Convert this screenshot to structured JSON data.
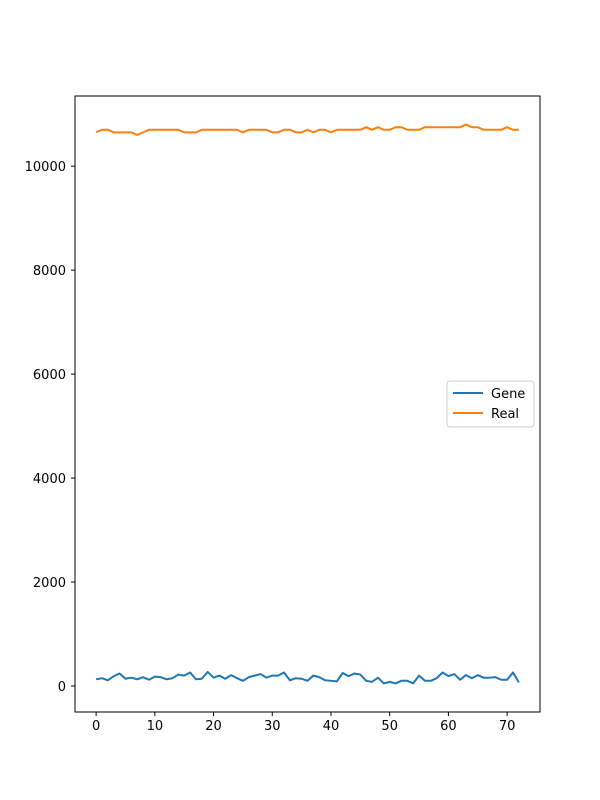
{
  "chart_data": {
    "type": "line",
    "title": "",
    "xlabel": "",
    "ylabel": "",
    "xlim": [
      -3.6,
      75.6
    ],
    "ylim": [
      -500,
      11350
    ],
    "xticks": [
      0,
      10,
      20,
      30,
      40,
      50,
      60,
      70
    ],
    "yticks": [
      0,
      2000,
      4000,
      6000,
      8000,
      10000
    ],
    "xtick_labels": [
      "0",
      "10",
      "20",
      "30",
      "40",
      "50",
      "60",
      "70"
    ],
    "ytick_labels": [
      "0",
      "2000",
      "4000",
      "6000",
      "8000",
      "10000"
    ],
    "grid": false,
    "legend_position": "center-right",
    "series": [
      {
        "name": "Gene",
        "color": "#1f77b4",
        "values": [
          130,
          150,
          110,
          190,
          240,
          140,
          160,
          130,
          170,
          120,
          180,
          170,
          130,
          150,
          220,
          200,
          260,
          130,
          140,
          270,
          160,
          200,
          140,
          210,
          150,
          100,
          170,
          200,
          230,
          160,
          200,
          200,
          260,
          110,
          150,
          140,
          100,
          200,
          170,
          110,
          100,
          90,
          250,
          190,
          240,
          220,
          100,
          80,
          160,
          50,
          80,
          50,
          100,
          100,
          50,
          200,
          100,
          100,
          150,
          260,
          190,
          230,
          120,
          210,
          150,
          210,
          160,
          160,
          170,
          120,
          120,
          260,
          70
        ]
      },
      {
        "name": "Real",
        "color": "#ff7f0e",
        "values": [
          10650,
          10700,
          10700,
          10650,
          10650,
          10650,
          10650,
          10600,
          10650,
          10700,
          10700,
          10700,
          10700,
          10700,
          10700,
          10650,
          10650,
          10650,
          10700,
          10700,
          10700,
          10700,
          10700,
          10700,
          10700,
          10650,
          10700,
          10700,
          10700,
          10700,
          10650,
          10650,
          10700,
          10700,
          10650,
          10650,
          10700,
          10650,
          10700,
          10700,
          10650,
          10700,
          10700,
          10700,
          10700,
          10700,
          10750,
          10700,
          10750,
          10700,
          10700,
          10750,
          10750,
          10700,
          10700,
          10700,
          10750,
          10750,
          10750,
          10750,
          10750,
          10750,
          10750,
          10800,
          10750,
          10750,
          10700,
          10700,
          10700,
          10700,
          10750,
          10700,
          10700
        ]
      }
    ]
  }
}
